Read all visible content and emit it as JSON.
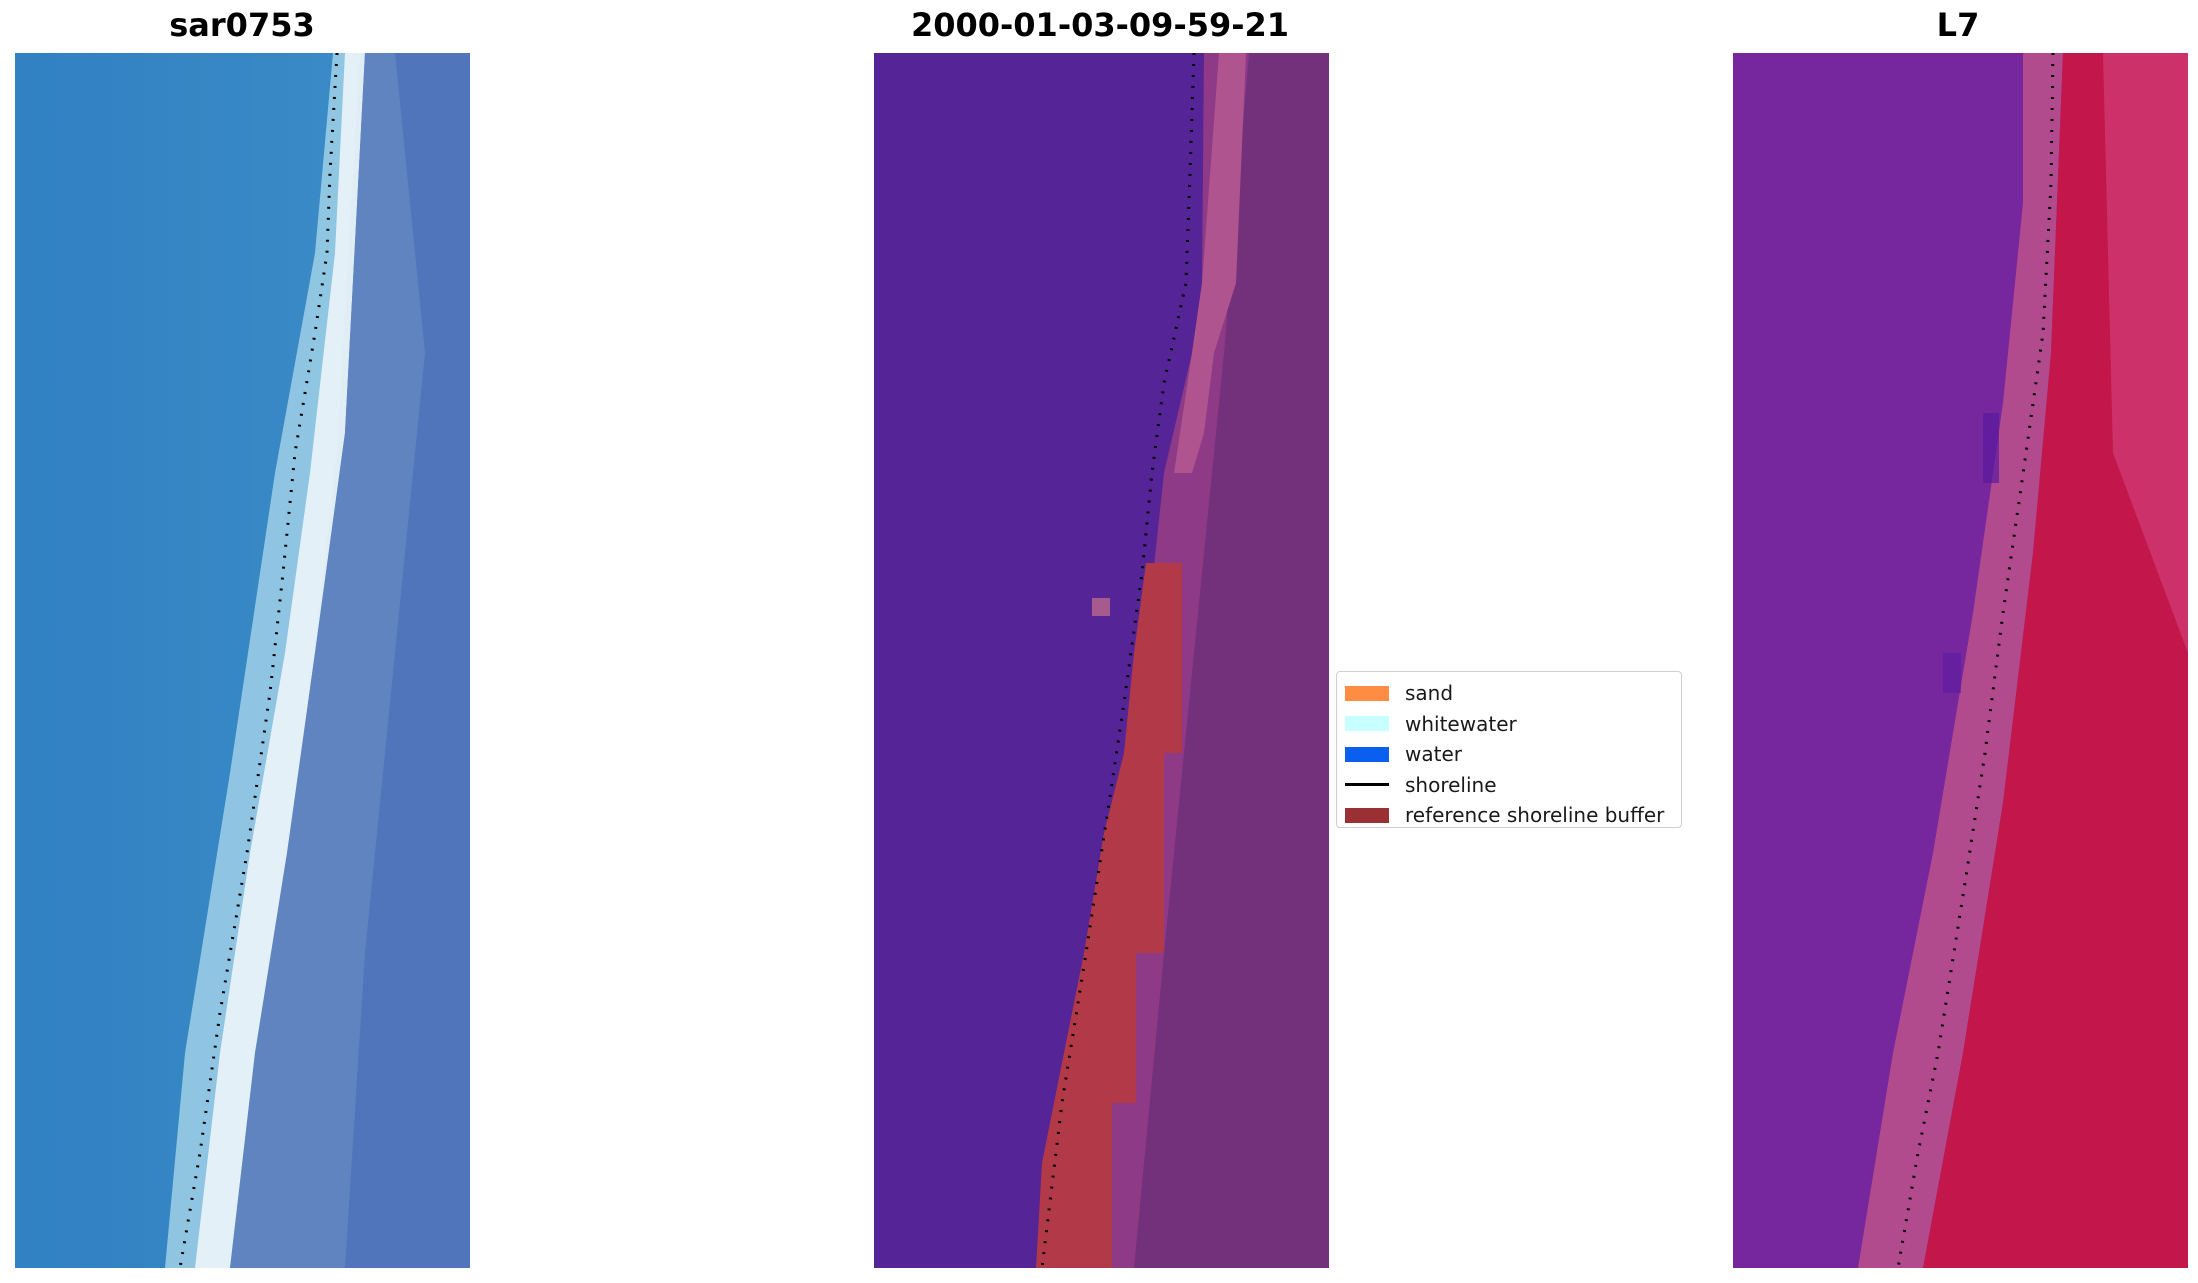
{
  "titles": {
    "left": "sar0753",
    "middle": "2000-01-03-09-59-21",
    "right": "L7"
  },
  "legend": {
    "items": [
      {
        "label": "sand",
        "color": "#ff8c42",
        "kind": "patch"
      },
      {
        "label": "whitewater",
        "color": "#c8ffff",
        "kind": "patch"
      },
      {
        "label": "water",
        "color": "#0a5ff0",
        "kind": "patch"
      },
      {
        "label": "shoreline",
        "color": "#000000",
        "kind": "line"
      },
      {
        "label": "reference shoreline buffer",
        "color": "#9b3034",
        "kind": "patch"
      }
    ]
  },
  "colors": {
    "classified_water": "#552496",
    "buffer": "#b23a48",
    "sar_water": "#2e7dbf",
    "l7_water": "#7a2aa0",
    "l7_land": "#c0164a"
  }
}
